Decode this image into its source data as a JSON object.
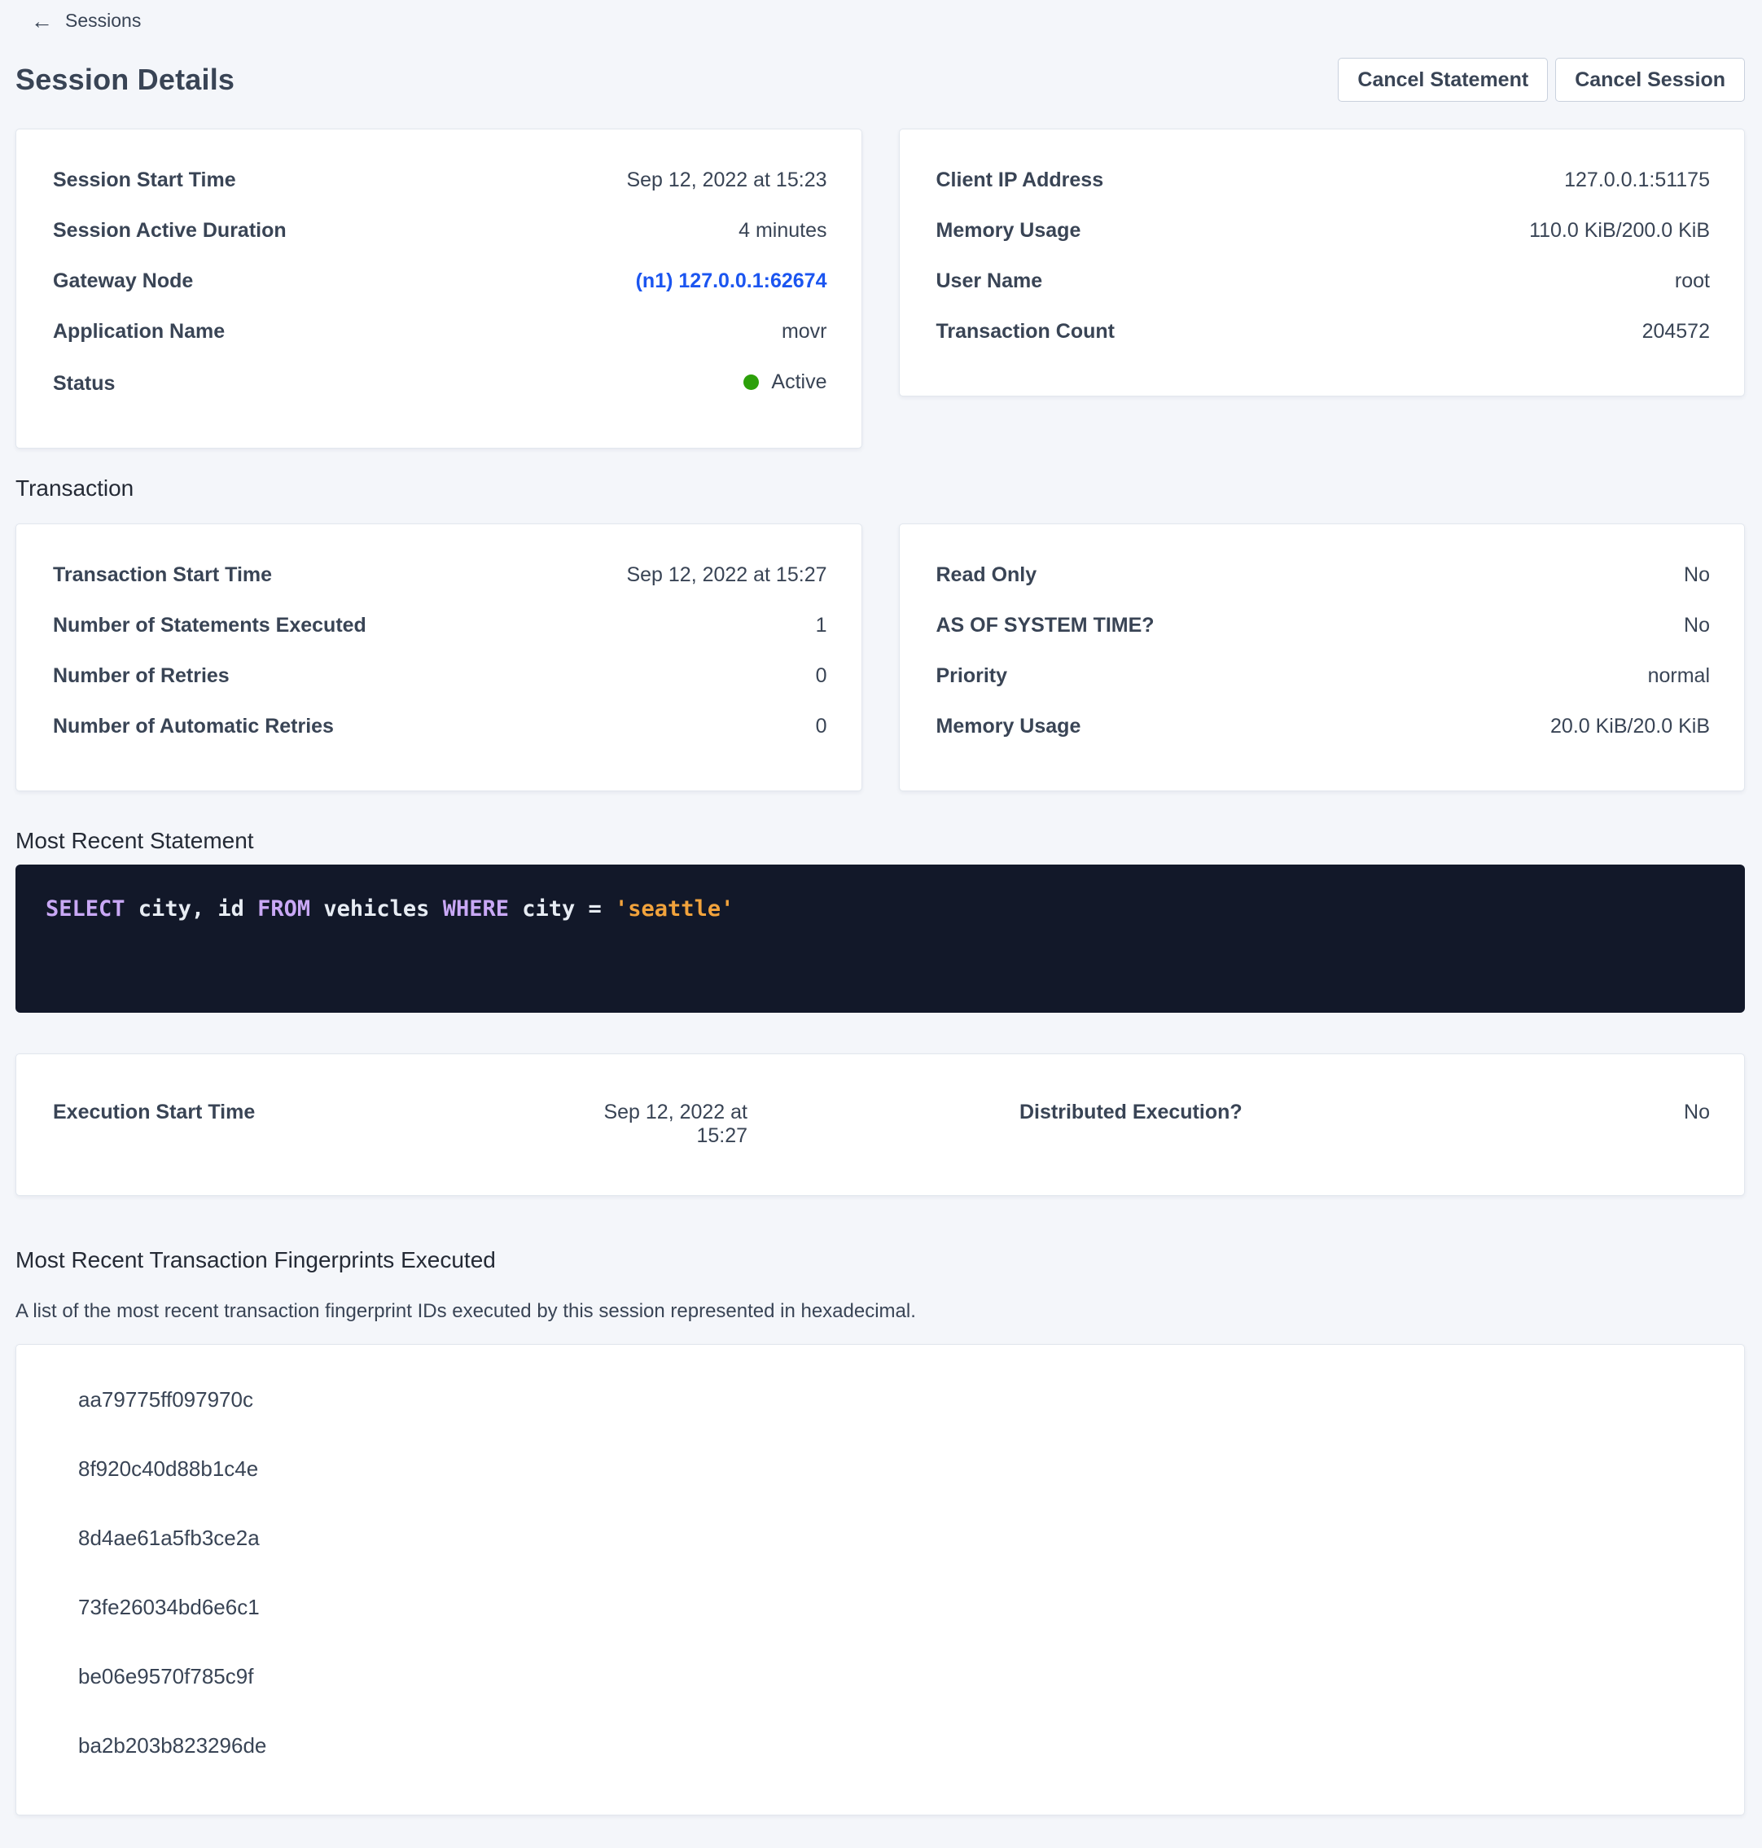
{
  "breadcrumb": {
    "back_label": "Sessions"
  },
  "page": {
    "title": "Session Details"
  },
  "actions": {
    "cancel_statement_label": "Cancel Statement",
    "cancel_session_label": "Cancel Session"
  },
  "colors": {
    "page_background": "#F4F6FA",
    "accent_blue": "#1B55F0",
    "status_green": "#2CA00A",
    "code_background": "#121829",
    "sql_keyword": "#C9A8F5",
    "sql_string": "#F2A33C",
    "text": "#394455"
  },
  "session": {
    "left": {
      "rows": [
        {
          "label": "Session Start Time",
          "value": "Sep 12, 2022 at 15:23"
        },
        {
          "label": "Session Active Duration",
          "value": "4 minutes"
        },
        {
          "label": "Gateway Node",
          "value": "(n1) 127.0.0.1:62674"
        },
        {
          "label": "Application Name",
          "value": "movr"
        },
        {
          "label": "Status",
          "value": "Active"
        }
      ]
    },
    "right": {
      "rows": [
        {
          "label": "Client IP Address",
          "value": "127.0.0.1:51175"
        },
        {
          "label": "Memory Usage",
          "value": "110.0 KiB/200.0 KiB"
        },
        {
          "label": "User Name",
          "value": "root"
        },
        {
          "label": "Transaction Count",
          "value": "204572"
        }
      ]
    }
  },
  "transaction": {
    "section_title": "Transaction",
    "left": {
      "rows": [
        {
          "label": "Transaction Start Time",
          "value": "Sep 12, 2022 at 15:27"
        },
        {
          "label": "Number of Statements Executed",
          "value": "1"
        },
        {
          "label": "Number of Retries",
          "value": "0"
        },
        {
          "label": "Number of Automatic Retries",
          "value": "0"
        }
      ]
    },
    "right": {
      "rows": [
        {
          "label": "Read Only",
          "value": "No"
        },
        {
          "label": "AS OF SYSTEM TIME?",
          "value": "No"
        },
        {
          "label": "Priority",
          "value": "normal"
        },
        {
          "label": "Memory Usage",
          "value": "20.0 KiB/20.0 KiB"
        }
      ]
    }
  },
  "statement": {
    "section_title": "Most Recent Statement",
    "sql": {
      "kw1": "SELECT",
      "t1": " city, id ",
      "kw2": "FROM",
      "t2": " vehicles ",
      "kw3": "WHERE",
      "t3": " city = ",
      "str1": "'seattle'"
    }
  },
  "execution": {
    "start_label": "Execution Start Time",
    "start_value": "Sep 12, 2022 at 15:27",
    "distributed_label": "Distributed Execution?",
    "distributed_value": "No"
  },
  "fingerprints": {
    "section_title": "Most Recent Transaction Fingerprints Executed",
    "description": "A list of the most recent transaction fingerprint IDs executed by this session represented in hexadecimal.",
    "items": [
      "aa79775ff097970c",
      "8f920c40d88b1c4e",
      "8d4ae61a5fb3ce2a",
      "73fe26034bd6e6c1",
      "be06e9570f785c9f",
      "ba2b203b823296de"
    ]
  }
}
